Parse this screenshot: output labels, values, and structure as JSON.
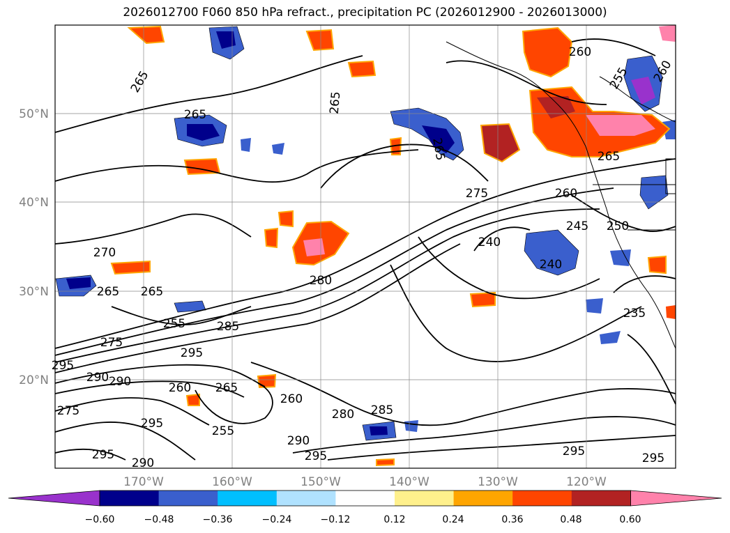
{
  "title": "2026012700 F060 850 hPa refract., precipitation PC (2026012900 - 2026013000)",
  "map": {
    "lat_labels": [
      "50°N",
      "40°N",
      "30°N",
      "20°N"
    ],
    "lon_labels": [
      "170°W",
      "160°W",
      "150°W",
      "140°W",
      "130°W",
      "120°W"
    ],
    "contour_labels": [
      "265",
      "270",
      "265",
      "265",
      "255",
      "275",
      "295",
      "295",
      "290",
      "290",
      "260",
      "265",
      "295",
      "255",
      "295",
      "290",
      "265",
      "280",
      "285",
      "280",
      "285",
      "295",
      "260",
      "240",
      "240",
      "245",
      "250",
      "265",
      "260",
      "275",
      "235",
      "295",
      "295",
      "260",
      "265",
      "290",
      "255",
      "275",
      "265",
      "260"
    ]
  },
  "colorbar": {
    "ticks": [
      "−0.60",
      "−0.48",
      "−0.36",
      "−0.24",
      "−0.12",
      "0.12",
      "0.24",
      "0.36",
      "0.48",
      "0.60"
    ],
    "colors": [
      "#9932cc",
      "#00008b",
      "#3a5fcd",
      "#00bfff",
      "#b0e2ff",
      "#ffffff",
      "#fff08c",
      "#ffa500",
      "#ff4500",
      "#b22222",
      "#ff82ab"
    ]
  }
}
